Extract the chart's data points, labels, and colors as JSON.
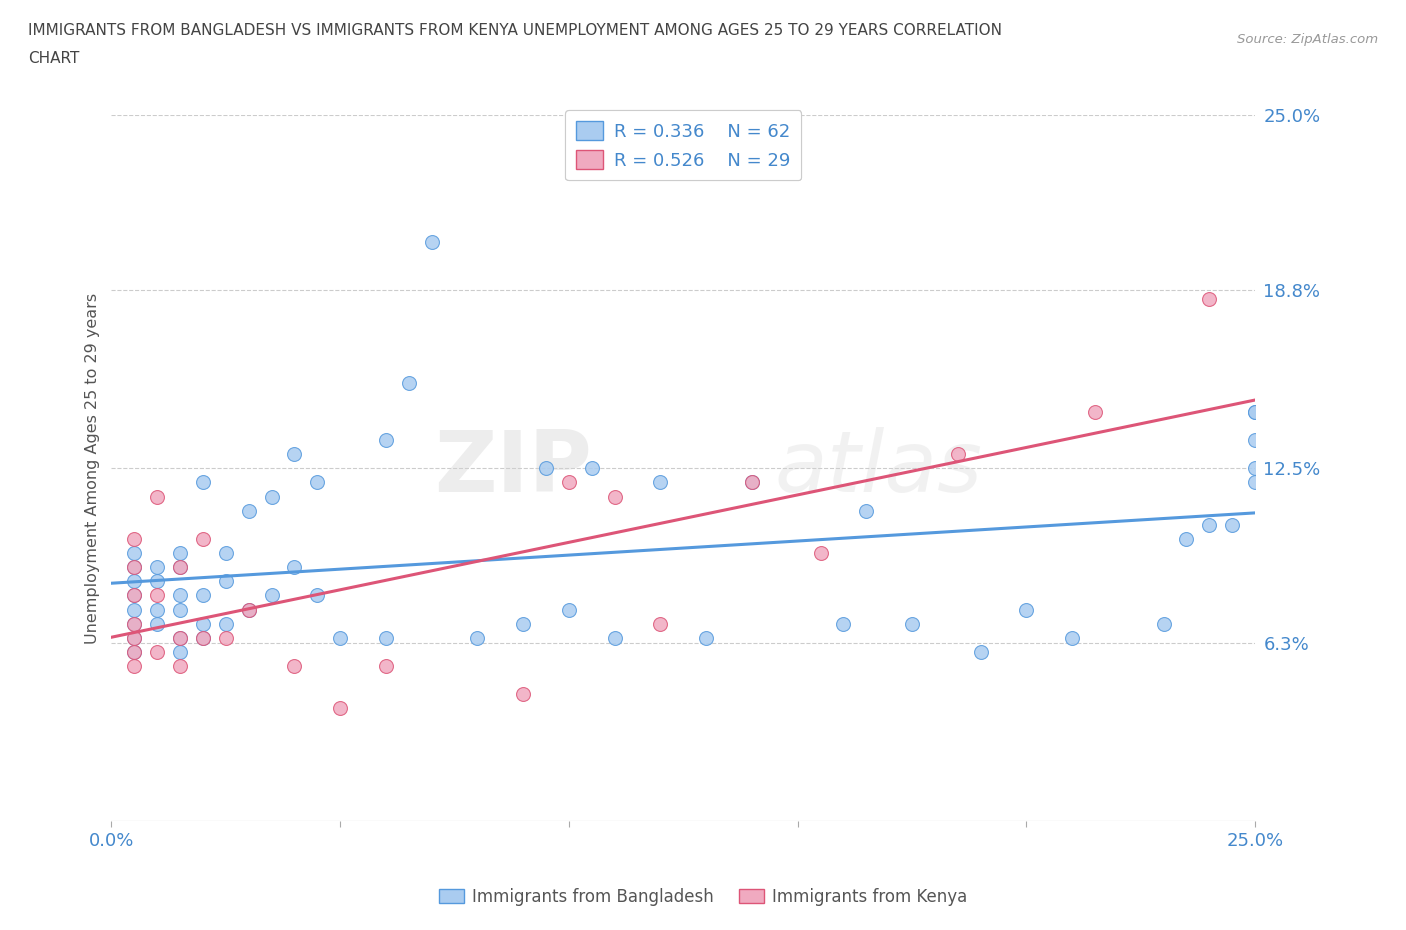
{
  "title_line1": "IMMIGRANTS FROM BANGLADESH VS IMMIGRANTS FROM KENYA UNEMPLOYMENT AMONG AGES 25 TO 29 YEARS CORRELATION",
  "title_line2": "CHART",
  "source_text": "Source: ZipAtlas.com",
  "ylabel": "Unemployment Among Ages 25 to 29 years",
  "xlim": [
    0.0,
    0.25
  ],
  "ylim": [
    0.0,
    0.25
  ],
  "ytick_vals": [
    0.0,
    0.063,
    0.125,
    0.188,
    0.25
  ],
  "ytick_labels": [
    "",
    "6.3%",
    "12.5%",
    "18.8%",
    "25.0%"
  ],
  "xtick_vals": [
    0.0,
    0.05,
    0.1,
    0.15,
    0.2,
    0.25
  ],
  "xtick_labels_bottom": [
    "0.0%",
    "",
    "",
    "",
    "",
    "25.0%"
  ],
  "watermark_zip": "ZIP",
  "watermark_atlas": "atlas",
  "legend_r_bangladesh": "R = 0.336",
  "legend_n_bangladesh": "N = 62",
  "legend_r_kenya": "R = 0.526",
  "legend_n_kenya": "N = 29",
  "color_bangladesh": "#aaccf0",
  "color_kenya": "#f0aac0",
  "line_color_bangladesh": "#5599dd",
  "line_color_kenya": "#dd5577",
  "background_color": "#ffffff",
  "grid_color": "#cccccc",
  "title_color": "#444444",
  "tick_label_color": "#4488cc",
  "legend_label_bangladesh": "Immigrants from Bangladesh",
  "legend_label_kenya": "Immigrants from Kenya",
  "bd_x": [
    0.005,
    0.005,
    0.005,
    0.005,
    0.005,
    0.005,
    0.005,
    0.005,
    0.01,
    0.01,
    0.01,
    0.01,
    0.015,
    0.015,
    0.015,
    0.015,
    0.015,
    0.015,
    0.02,
    0.02,
    0.02,
    0.02,
    0.025,
    0.025,
    0.025,
    0.03,
    0.03,
    0.035,
    0.035,
    0.04,
    0.04,
    0.045,
    0.045,
    0.05,
    0.06,
    0.06,
    0.065,
    0.07,
    0.08,
    0.09,
    0.095,
    0.1,
    0.105,
    0.11,
    0.12,
    0.13,
    0.14,
    0.16,
    0.165,
    0.175,
    0.19,
    0.2,
    0.21,
    0.23,
    0.235,
    0.24,
    0.245,
    0.25,
    0.25,
    0.25,
    0.25,
    0.25
  ],
  "bd_y": [
    0.06,
    0.065,
    0.07,
    0.075,
    0.08,
    0.085,
    0.09,
    0.095,
    0.07,
    0.075,
    0.085,
    0.09,
    0.06,
    0.065,
    0.075,
    0.08,
    0.09,
    0.095,
    0.065,
    0.07,
    0.08,
    0.12,
    0.07,
    0.085,
    0.095,
    0.075,
    0.11,
    0.08,
    0.115,
    0.09,
    0.13,
    0.08,
    0.12,
    0.065,
    0.065,
    0.135,
    0.155,
    0.205,
    0.065,
    0.07,
    0.125,
    0.075,
    0.125,
    0.065,
    0.12,
    0.065,
    0.12,
    0.07,
    0.11,
    0.07,
    0.06,
    0.075,
    0.065,
    0.07,
    0.1,
    0.105,
    0.105,
    0.12,
    0.125,
    0.135,
    0.145,
    0.145
  ],
  "ke_x": [
    0.005,
    0.005,
    0.005,
    0.005,
    0.005,
    0.005,
    0.005,
    0.01,
    0.01,
    0.01,
    0.015,
    0.015,
    0.015,
    0.02,
    0.02,
    0.025,
    0.03,
    0.04,
    0.05,
    0.06,
    0.09,
    0.1,
    0.11,
    0.12,
    0.14,
    0.155,
    0.185,
    0.215,
    0.24
  ],
  "ke_y": [
    0.055,
    0.06,
    0.065,
    0.07,
    0.08,
    0.09,
    0.1,
    0.06,
    0.08,
    0.115,
    0.055,
    0.065,
    0.09,
    0.065,
    0.1,
    0.065,
    0.075,
    0.055,
    0.04,
    0.055,
    0.045,
    0.12,
    0.115,
    0.07,
    0.12,
    0.095,
    0.13,
    0.145,
    0.185
  ]
}
